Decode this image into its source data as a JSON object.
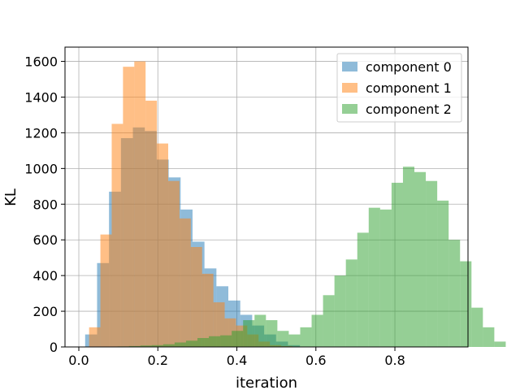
{
  "chart_data": {
    "type": "bar",
    "subtype": "overlapping-histogram",
    "title": "",
    "xlabel": "iteration",
    "ylabel": "KL",
    "xlim": [
      -0.035,
      0.985
    ],
    "ylim": [
      0,
      1680
    ],
    "xticks": [
      0.0,
      0.2,
      0.4,
      0.6,
      0.8
    ],
    "xtick_labels": [
      "0.0",
      "0.2",
      "0.4",
      "0.6",
      "0.8"
    ],
    "yticks": [
      0,
      200,
      400,
      600,
      800,
      1000,
      1200,
      1400,
      1600
    ],
    "ytick_labels": [
      "0",
      "200",
      "400",
      "600",
      "800",
      "1000",
      "1200",
      "1400",
      "1600"
    ],
    "grid": true,
    "legend_position": "top-right",
    "series": [
      {
        "name": "component 0",
        "color": "#1f77b4",
        "opacity": 0.5,
        "bin_start": 0.016,
        "bin_width": 0.0302,
        "values": [
          70,
          470,
          870,
          1170,
          1230,
          1210,
          1050,
          950,
          770,
          590,
          440,
          340,
          260,
          180,
          120,
          70,
          30,
          10
        ]
      },
      {
        "name": "component 1",
        "color": "#ff7f0e",
        "opacity": 0.5,
        "bin_start": 0.026,
        "bin_width": 0.0286,
        "values": [
          110,
          630,
          1250,
          1570,
          1600,
          1380,
          1140,
          930,
          720,
          560,
          410,
          250,
          160,
          120,
          70,
          30,
          10,
          5
        ]
      },
      {
        "name": "component 2",
        "color": "#2ca02c",
        "opacity": 0.5,
        "bin_start": 0.069,
        "bin_width": 0.0289,
        "values": [
          2,
          3,
          5,
          8,
          10,
          15,
          25,
          35,
          50,
          60,
          65,
          90,
          150,
          180,
          150,
          90,
          70,
          110,
          180,
          290,
          400,
          490,
          640,
          780,
          770,
          920,
          1010,
          980,
          930,
          820,
          600,
          480,
          220,
          110,
          30
        ]
      }
    ]
  }
}
